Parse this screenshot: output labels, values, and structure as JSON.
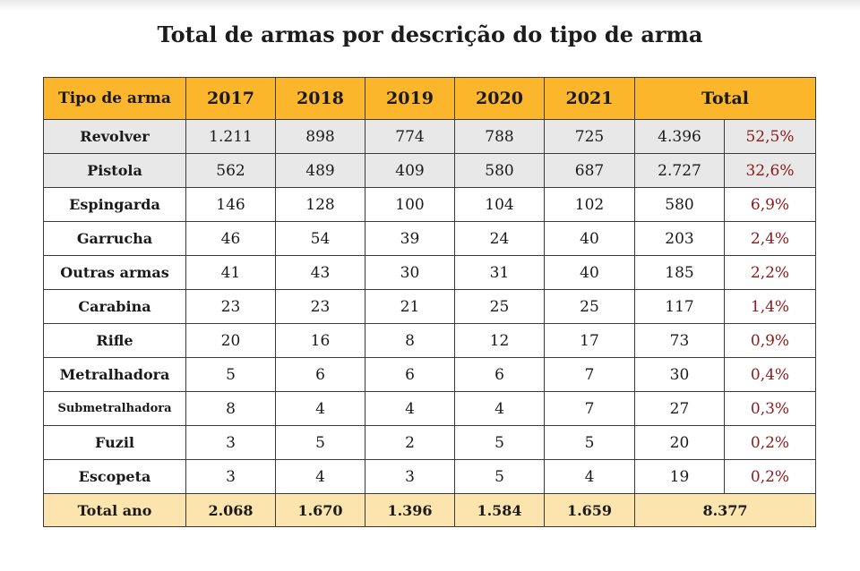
{
  "title": "Total de armas por descrição do tipo de arma",
  "chart_data": {
    "type": "table",
    "title": "Total de armas por descrição do tipo de arma",
    "columns": [
      "Tipo de arma",
      "2017",
      "2018",
      "2019",
      "2020",
      "2021",
      "Total"
    ],
    "rows": [
      {
        "name": "Revolver",
        "values": [
          "1.211",
          "898",
          "774",
          "788",
          "725"
        ],
        "total": "4.396",
        "pct": "52,5%"
      },
      {
        "name": "Pistola",
        "values": [
          "562",
          "489",
          "409",
          "580",
          "687"
        ],
        "total": "2.727",
        "pct": "32,6%"
      },
      {
        "name": "Espingarda",
        "values": [
          "146",
          "128",
          "100",
          "104",
          "102"
        ],
        "total": "580",
        "pct": "6,9%"
      },
      {
        "name": "Garrucha",
        "values": [
          "46",
          "54",
          "39",
          "24",
          "40"
        ],
        "total": "203",
        "pct": "2,4%"
      },
      {
        "name": "Outras armas",
        "values": [
          "41",
          "43",
          "30",
          "31",
          "40"
        ],
        "total": "185",
        "pct": "2,2%"
      },
      {
        "name": "Carabina",
        "values": [
          "23",
          "23",
          "21",
          "25",
          "25"
        ],
        "total": "117",
        "pct": "1,4%"
      },
      {
        "name": "Rifle",
        "values": [
          "20",
          "16",
          "8",
          "12",
          "17"
        ],
        "total": "73",
        "pct": "0,9%"
      },
      {
        "name": "Metralhadora",
        "values": [
          "5",
          "6",
          "6",
          "6",
          "7"
        ],
        "total": "30",
        "pct": "0,4%"
      },
      {
        "name": "Submetralhadora",
        "values": [
          "8",
          "4",
          "4",
          "4",
          "7"
        ],
        "total": "27",
        "pct": "0,3%"
      },
      {
        "name": "Fuzil",
        "values": [
          "3",
          "5",
          "2",
          "5",
          "5"
        ],
        "total": "20",
        "pct": "0,2%"
      },
      {
        "name": "Escopeta",
        "values": [
          "3",
          "4",
          "3",
          "5",
          "4"
        ],
        "total": "19",
        "pct": "0,2%"
      }
    ],
    "footer": {
      "name": "Total ano",
      "values": [
        "2.068",
        "1.670",
        "1.396",
        "1.584",
        "1.659"
      ],
      "total": "8.377"
    },
    "colors": {
      "header": "#fbb62b",
      "footer": "#fbe4ae",
      "shaded": "#e8e8e8",
      "pct": "#8b1a1a"
    }
  }
}
